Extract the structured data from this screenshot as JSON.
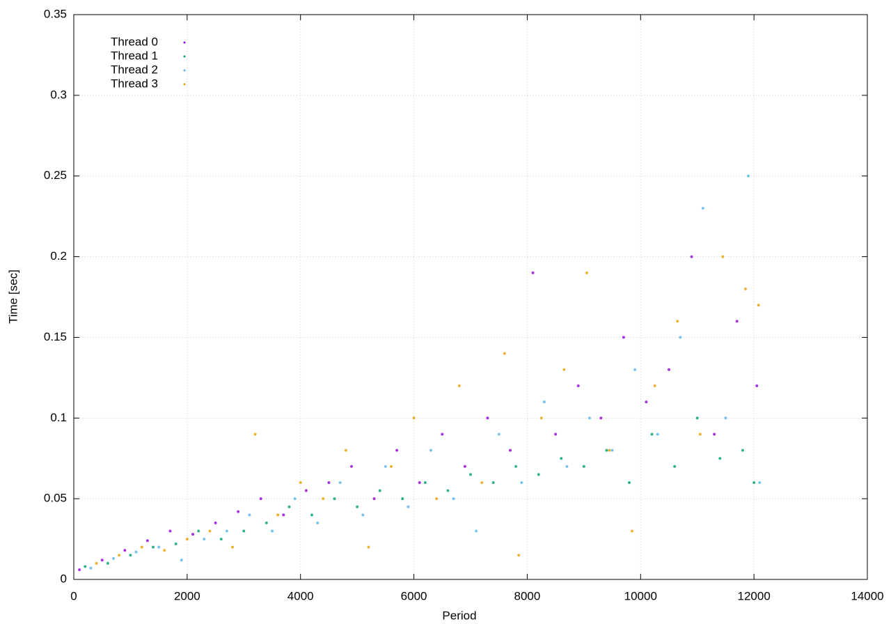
{
  "chart_data": {
    "type": "scatter",
    "x_label": "Period",
    "y_label": "Time [sec]",
    "xlim": [
      0,
      14000
    ],
    "ylim": [
      0,
      0.35
    ],
    "xticks": [
      0,
      2000,
      4000,
      6000,
      8000,
      10000,
      12000,
      14000
    ],
    "yticks": [
      0,
      0.05,
      0.1,
      0.15,
      0.2,
      0.25,
      0.3,
      0.35
    ],
    "grid": true,
    "legend": "top-left",
    "series": [
      {
        "name": "Thread 0",
        "color": "#9400d3",
        "x": [
          100,
          500,
          900,
          1300,
          1700,
          2100,
          2500,
          2900,
          3300,
          3700,
          4100,
          4500,
          4900,
          5300,
          5700,
          6100,
          6500,
          6900,
          7300,
          7700,
          8100,
          8500,
          8900,
          9300,
          9700,
          10100,
          10500,
          10900,
          11300,
          11700,
          12050
        ],
        "values": [
          0.006,
          0.012,
          0.018,
          0.024,
          0.03,
          0.028,
          0.035,
          0.042,
          0.05,
          0.04,
          0.055,
          0.06,
          0.07,
          0.05,
          0.08,
          0.06,
          0.09,
          0.07,
          0.1,
          0.08,
          0.19,
          0.09,
          0.12,
          0.1,
          0.15,
          0.11,
          0.13,
          0.2,
          0.09,
          0.16,
          0.12
        ]
      },
      {
        "name": "Thread 1",
        "color": "#009e73",
        "x": [
          200,
          600,
          1000,
          1400,
          1800,
          2200,
          2600,
          3000,
          3400,
          3800,
          4200,
          4600,
          5000,
          5400,
          5800,
          6200,
          6600,
          7000,
          7400,
          7800,
          8200,
          8600,
          9000,
          9400,
          9800,
          10200,
          10600,
          11000,
          11400,
          11800,
          12000
        ],
        "values": [
          0.008,
          0.01,
          0.015,
          0.02,
          0.022,
          0.03,
          0.025,
          0.03,
          0.035,
          0.045,
          0.04,
          0.05,
          0.045,
          0.055,
          0.05,
          0.06,
          0.055,
          0.065,
          0.06,
          0.07,
          0.065,
          0.075,
          0.07,
          0.08,
          0.06,
          0.09,
          0.07,
          0.1,
          0.075,
          0.08,
          0.06
        ]
      },
      {
        "name": "Thread 2",
        "color": "#56b4e9",
        "x": [
          300,
          700,
          1100,
          1500,
          1900,
          2300,
          2700,
          3100,
          3500,
          3900,
          4300,
          4700,
          5100,
          5500,
          5900,
          6300,
          6700,
          7100,
          7500,
          7900,
          8300,
          8700,
          9100,
          9500,
          9900,
          10300,
          10700,
          11100,
          11500,
          11900,
          12100
        ],
        "values": [
          0.007,
          0.013,
          0.017,
          0.02,
          0.012,
          0.025,
          0.03,
          0.04,
          0.03,
          0.05,
          0.035,
          0.06,
          0.04,
          0.07,
          0.045,
          0.08,
          0.05,
          0.03,
          0.09,
          0.06,
          0.11,
          0.07,
          0.1,
          0.08,
          0.13,
          0.09,
          0.15,
          0.23,
          0.1,
          0.25,
          0.06
        ]
      },
      {
        "name": "Thread 3",
        "color": "#e69f00",
        "x": [
          400,
          800,
          1200,
          1600,
          2000,
          2400,
          2800,
          3200,
          3600,
          4000,
          4400,
          4800,
          5200,
          5600,
          6000,
          6400,
          6800,
          7200,
          7600,
          7850,
          8250,
          8650,
          9050,
          9450,
          9850,
          10250,
          10650,
          11050,
          11450,
          11850,
          12080
        ],
        "values": [
          0.01,
          0.015,
          0.02,
          0.018,
          0.025,
          0.03,
          0.02,
          0.09,
          0.04,
          0.06,
          0.05,
          0.08,
          0.02,
          0.07,
          0.1,
          0.05,
          0.12,
          0.06,
          0.14,
          0.015,
          0.1,
          0.13,
          0.19,
          0.08,
          0.03,
          0.12,
          0.16,
          0.09,
          0.2,
          0.18,
          0.17
        ]
      }
    ]
  }
}
